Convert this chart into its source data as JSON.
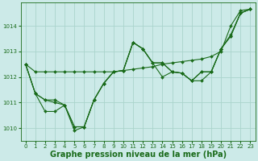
{
  "background_color": "#cceae8",
  "grid_color": "#aad4cc",
  "line_color": "#1a6b1a",
  "xlabel": "Graphe pression niveau de la mer (hPa)",
  "xlabel_fontsize": 7.0,
  "ylim": [
    1009.5,
    1014.9
  ],
  "xlim": [
    -0.5,
    23.5
  ],
  "yticks": [
    1010,
    1011,
    1012,
    1013,
    1014
  ],
  "xticks": [
    0,
    1,
    2,
    3,
    4,
    5,
    6,
    7,
    8,
    9,
    10,
    11,
    12,
    13,
    14,
    15,
    16,
    17,
    18,
    19,
    20,
    21,
    22,
    23
  ],
  "series1_x": [
    0,
    1,
    2,
    3,
    4,
    5,
    6,
    7,
    8,
    9,
    10,
    11,
    12,
    13,
    14,
    15,
    16,
    17,
    18,
    19,
    20,
    21,
    22,
    23
  ],
  "series1_y": [
    1012.5,
    1012.2,
    1012.2,
    1012.2,
    1012.2,
    1012.2,
    1012.2,
    1012.2,
    1012.2,
    1012.2,
    1012.25,
    1012.3,
    1012.35,
    1012.4,
    1012.5,
    1012.55,
    1012.6,
    1012.65,
    1012.7,
    1012.8,
    1013.0,
    1014.0,
    1014.6,
    1014.65
  ],
  "series2_x": [
    0,
    1,
    2,
    3,
    4,
    5,
    6,
    7,
    8,
    9,
    10,
    11,
    12,
    13,
    14,
    15,
    16,
    17,
    18,
    19,
    20,
    21,
    22,
    23
  ],
  "series2_y": [
    1012.5,
    1011.35,
    1011.1,
    1011.1,
    1010.9,
    1009.9,
    1010.05,
    1011.1,
    1011.75,
    1012.2,
    1012.25,
    1013.35,
    1013.1,
    1012.55,
    1012.0,
    1012.2,
    1012.15,
    1011.85,
    1011.85,
    1012.2,
    1013.1,
    1013.65,
    1014.5,
    1014.65
  ],
  "series3_x": [
    0,
    1,
    2,
    3,
    4,
    5,
    6,
    7,
    8,
    9,
    10,
    11,
    12,
    13,
    14,
    15,
    16,
    17,
    18,
    19,
    20,
    21,
    22,
    23
  ],
  "series3_y": [
    1012.5,
    1011.35,
    1011.1,
    1011.0,
    1010.9,
    1010.05,
    1010.05,
    1011.1,
    1011.75,
    1012.2,
    1012.25,
    1013.35,
    1013.1,
    1012.55,
    1012.55,
    1012.2,
    1012.15,
    1011.85,
    1012.2,
    1012.2,
    1013.1,
    1013.6,
    1014.5,
    1014.65
  ],
  "series4_x": [
    0,
    1,
    2,
    3,
    4,
    5,
    6,
    7,
    8,
    9,
    10,
    11,
    12,
    13,
    14,
    15,
    16,
    17,
    18,
    19,
    20,
    21,
    22,
    23
  ],
  "series4_y": [
    1012.5,
    1011.35,
    1010.65,
    1010.65,
    1010.9,
    1010.05,
    1010.05,
    1011.1,
    1011.75,
    1012.2,
    1012.25,
    1013.35,
    1013.1,
    1012.55,
    1012.55,
    1012.2,
    1012.15,
    1011.85,
    1012.2,
    1012.2,
    1013.1,
    1013.6,
    1014.5,
    1014.65
  ]
}
